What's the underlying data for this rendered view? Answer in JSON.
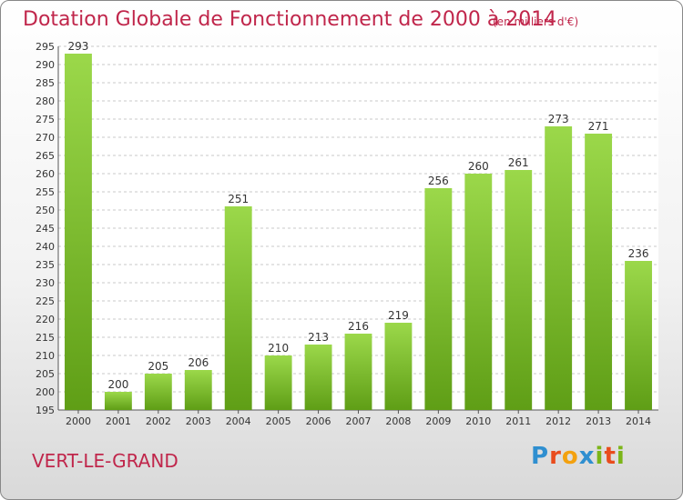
{
  "chart_data": {
    "type": "bar",
    "title": "Dotation Globale de Fonctionnement de 2000 à 2014",
    "subtitle": "(en milliers d'€)",
    "categories": [
      "2000",
      "2001",
      "2002",
      "2003",
      "2004",
      "2005",
      "2006",
      "2007",
      "2008",
      "2009",
      "2010",
      "2011",
      "2012",
      "2013",
      "2014"
    ],
    "values": [
      293,
      200,
      205,
      206,
      251,
      210,
      213,
      216,
      219,
      256,
      260,
      261,
      273,
      271,
      236
    ],
    "ylim": [
      195,
      295
    ],
    "ytick_step": 5,
    "grid": true,
    "bar_color": "#7cc232",
    "accent_color": "#c0264b"
  },
  "footer": {
    "place": "VERT-LE-GRAND",
    "logo_letters": [
      "P",
      "r",
      "o",
      "x",
      "i",
      "t",
      "i"
    ],
    "logo_colors": [
      "#2f8fd0",
      "#e94c1d",
      "#f3a10f",
      "#2f8fd0",
      "#7cb518",
      "#e94c1d",
      "#7cb518"
    ]
  }
}
